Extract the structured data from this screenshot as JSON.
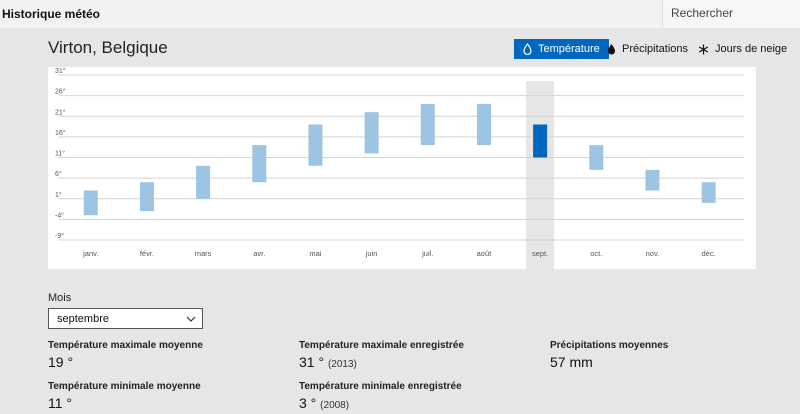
{
  "app": {
    "title": "Historique météo"
  },
  "search": {
    "placeholder": "Rechercher"
  },
  "location": "Virton, Belgique",
  "toggles": {
    "temperature": "Température",
    "precipitation": "Précipitations",
    "snow": "Jours de neige"
  },
  "colors": {
    "accent": "#0067c0",
    "bar": "#9ec4e4",
    "selected_bar": "#0067c0"
  },
  "chart_data": {
    "type": "bar",
    "subtype": "range",
    "categories": [
      "janv.",
      "févr.",
      "mars",
      "avr.",
      "mai",
      "juin",
      "juil.",
      "août",
      "sept.",
      "oct.",
      "nov.",
      "déc."
    ],
    "series": [
      {
        "low": [
          -3,
          -2,
          1,
          5,
          9,
          12,
          14,
          14,
          11,
          8,
          3,
          0
        ],
        "high": [
          3,
          5,
          9,
          14,
          19,
          22,
          24,
          24,
          19,
          14,
          8,
          5
        ]
      }
    ],
    "selected_index": 8,
    "yticks": [
      "31°",
      "26°",
      "21°",
      "16°",
      "11°",
      "6°",
      "1°",
      "-4°",
      "-9°"
    ],
    "ylim": [
      -9,
      31
    ],
    "grid": true
  },
  "month_selector": {
    "label": "Mois",
    "value": "septembre"
  },
  "stats": {
    "avg_max": {
      "label": "Température maximale moyenne",
      "value": "19 °"
    },
    "avg_min": {
      "label": "Température minimale moyenne",
      "value": "11 °"
    },
    "rec_max": {
      "label": "Température maximale enregistrée",
      "value": "31 °",
      "year": "(2013)"
    },
    "rec_min": {
      "label": "Température minimale enregistrée",
      "value": "3 °",
      "year": "(2008)"
    },
    "precip": {
      "label": "Précipitations moyennes",
      "value": "57 mm"
    }
  }
}
